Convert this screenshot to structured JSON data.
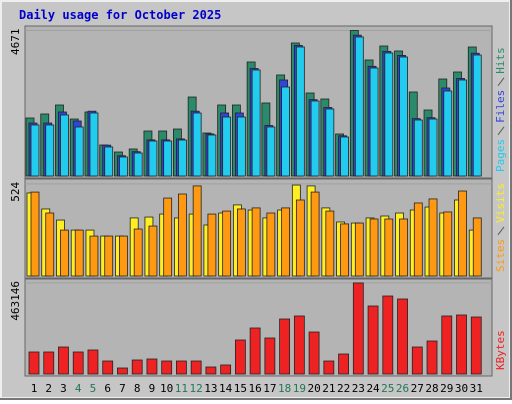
{
  "title": "Daily usage for October 2025",
  "chart_data": [
    {
      "type": "bar",
      "series": [
        {
          "name": "Hits",
          "color": "#2a8a6a",
          "values": [
            1861,
            1990,
            2279,
            1829,
            2054,
            995,
            770,
            867,
            1444,
            1444,
            1508,
            2535,
            1380,
            2279,
            2279,
            3659,
            2343,
            3242,
            4269,
            2664,
            2471,
            1348,
            4671,
            3723,
            4172,
            4012,
            2696,
            2118,
            3113,
            3338,
            4140
          ]
        },
        {
          "name": "Files",
          "color": "#3344dd",
          "values": [
            1700,
            1700,
            2054,
            1765,
            2080,
            990,
            650,
            780,
            1160,
            1160,
            1190,
            2080,
            1350,
            2022,
            2022,
            3450,
            1620,
            3081,
            4190,
            2450,
            2200,
            1290,
            4520,
            3520,
            4000,
            3870,
            1840,
            1870,
            2824,
            3130,
            3940
          ]
        },
        {
          "name": "Pages",
          "color": "#22ccee",
          "values": [
            1637,
            1637,
            1958,
            1573,
            2022,
            931,
            610,
            738,
            1123,
            1123,
            1155,
            2022,
            1316,
            1893,
            1893,
            3402,
            1573,
            2856,
            4140,
            2407,
            2150,
            1252,
            4461,
            3466,
            3947,
            3819,
            1797,
            1829,
            2728,
            3081,
            3883
          ]
        }
      ],
      "ylim": [
        0,
        4750
      ],
      "yticks": [
        4671
      ]
    },
    {
      "type": "bar",
      "series": [
        {
          "name": "Visits",
          "color": "#ffee22",
          "values": [
            472,
            381,
            318,
            261,
            261,
            227,
            227,
            330,
            335,
            352,
            330,
            352,
            290,
            358,
            404,
            375,
            330,
            375,
            517,
            512,
            387,
            307,
            301,
            330,
            341,
            358,
            375,
            392,
            358,
            432,
            261
          ]
        },
        {
          "name": "Sites",
          "color": "#ff9911",
          "values": [
            477,
            358,
            261,
            261,
            227,
            227,
            227,
            267,
            284,
            443,
            466,
            512,
            352,
            369,
            381,
            387,
            358,
            387,
            432,
            477,
            369,
            296,
            301,
            324,
            324,
            324,
            415,
            438,
            364,
            483,
            330
          ]
        }
      ],
      "ylim": [
        0,
        540
      ],
      "yticks": [
        524
      ]
    },
    {
      "type": "bar",
      "categories": [
        "1",
        "2",
        "3",
        "4",
        "5",
        "6",
        "7",
        "8",
        "9",
        "10",
        "11",
        "12",
        "13",
        "14",
        "15",
        "16",
        "17",
        "18",
        "19",
        "20",
        "21",
        "22",
        "23",
        "24",
        "25",
        "26",
        "27",
        "28",
        "29",
        "30",
        "31"
      ],
      "category_colors": [
        "#000000",
        "#000000",
        "#000000",
        "#227755",
        "#227755",
        "#000000",
        "#000000",
        "#000000",
        "#000000",
        "#000000",
        "#227755",
        "#227755",
        "#000000",
        "#000000",
        "#000000",
        "#000000",
        "#000000",
        "#227755",
        "#227755",
        "#000000",
        "#000000",
        "#000000",
        "#000000",
        "#000000",
        "#227755",
        "#227755",
        "#000000",
        "#000000",
        "#000000",
        "#000000",
        "#000000"
      ],
      "series": [
        {
          "name": "KBytes",
          "color": "#ee2222",
          "values": [
            111900,
            111900,
            137300,
            111900,
            122100,
            66100,
            30500,
            71200,
            76300,
            66100,
            66100,
            66100,
            35600,
            45800,
            172900,
            234000,
            183100,
            279700,
            295000,
            213600,
            66100,
            101700,
            463146,
            345800,
            396700,
            381500,
            137300,
            167800,
            295000,
            300100,
            289900
          ]
        }
      ],
      "ylim": [
        0,
        473000
      ],
      "yticks": [
        463146
      ]
    }
  ]
}
